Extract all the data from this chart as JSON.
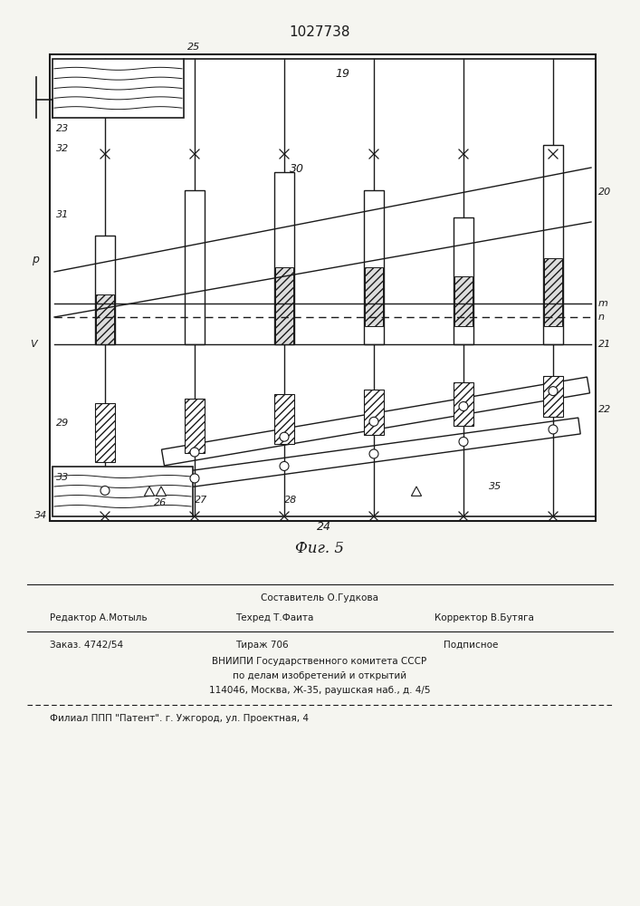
{
  "patent_number": "1027738",
  "bg_color": "#f5f5f0",
  "line_color": "#1a1a1a",
  "fig_width": 7.07,
  "fig_height": 10.0,
  "dpi": 100,
  "footer": {
    "line1": "Составитель О.Гудкова",
    "line2_left": "Редактор А.Мотыль",
    "line2_mid": "Техред Т.Фаита",
    "line2_right": "Корректор В.Бутяга",
    "line3_left": "Заказ. 4742/54",
    "line3_mid": "Тираж 706",
    "line3_right": "Подписное",
    "line4": "ВНИИПИ Государственного комитета СССР",
    "line5": "по делам изобретений и открытий",
    "line6": "114046, Москва, Ж-35, раушская наб., д. 4/5",
    "line7": "Филиал ППП \"Патент\". г. Ужгород, ул. Проектная, 4"
  }
}
